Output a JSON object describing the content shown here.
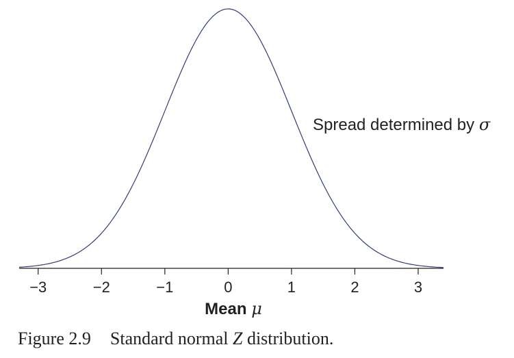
{
  "chart_data": {
    "type": "line",
    "title": "",
    "xlabel_text": "Mean",
    "xlabel_symbol": "μ",
    "ylabel": "",
    "xlim": [
      -3.3,
      3.4
    ],
    "ylim": [
      0,
      0.4
    ],
    "x_ticks": [
      -3,
      -2,
      -1,
      0,
      1,
      2,
      3
    ],
    "x_tick_labels": [
      "−3",
      "−2",
      "−1",
      "0",
      "1",
      "2",
      "3"
    ],
    "grid": false,
    "series": [
      {
        "function": "standard normal density",
        "mean": 0,
        "std": 1,
        "color": "#2e3a8c"
      }
    ],
    "annotation": {
      "text": "Spread determined by",
      "symbol": "σ"
    }
  },
  "caption": {
    "number": "Figure 2.9",
    "text_before": "Standard normal",
    "variable": "Z",
    "text_after": "distribution."
  },
  "colors": {
    "curve": "#2e3a8c",
    "axis": "#231f20",
    "text": "#231f20"
  }
}
